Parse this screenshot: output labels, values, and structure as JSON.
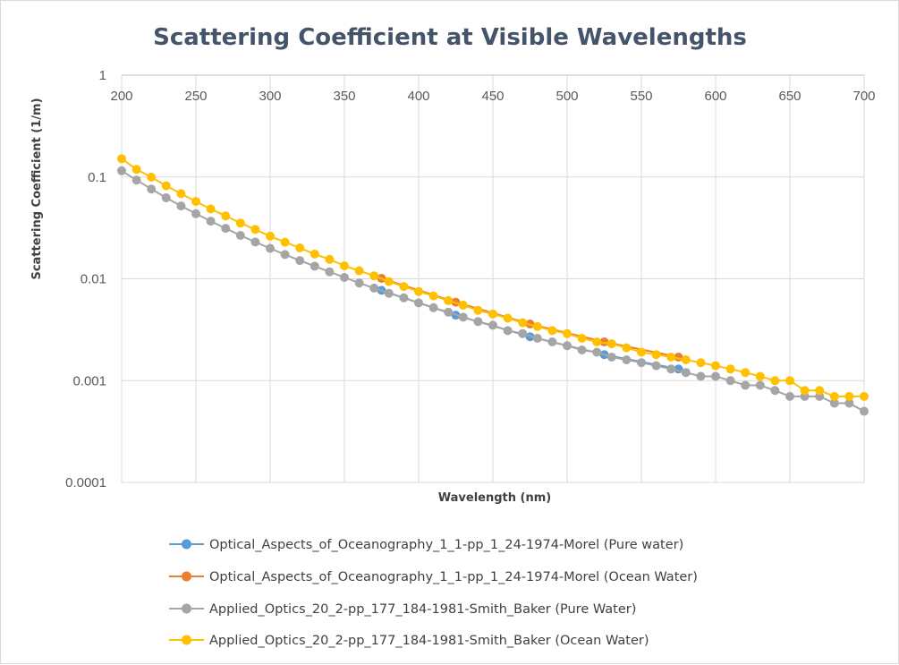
{
  "chart_data": {
    "type": "line",
    "title": "Scattering Coefficient at Visible Wavelengths",
    "xlabel": "Wavelength (nm)",
    "ylabel": "Scattering Coefficient (1/m)",
    "xlim": [
      200,
      700
    ],
    "ylim": [
      0.0001,
      1
    ],
    "y_scale": "log",
    "x_axis_position": "top",
    "grid": true,
    "legend_position": "bottom",
    "x_ticks": [
      "200",
      "250",
      "300",
      "350",
      "400",
      "450",
      "500",
      "550",
      "600",
      "650",
      "700"
    ],
    "y_ticks": [
      "1",
      "0.1",
      "0.01",
      "0.001",
      "0.0001"
    ],
    "series": [
      {
        "name": "Optical_Aspects_of_Oceanography_1_1-pp_1_24-1974-Morel (Pure water)",
        "color": "#5b9bd5",
        "x": [
          375,
          425,
          475,
          525,
          575
        ],
        "y": [
          0.0077,
          0.0044,
          0.0027,
          0.0018,
          0.0013
        ]
      },
      {
        "name": "Optical_Aspects_of_Oceanography_1_1-pp_1_24-1974-Morel (Ocean Water)",
        "color": "#ed7d31",
        "x": [
          375,
          425,
          475,
          525,
          575
        ],
        "y": [
          0.0101,
          0.0059,
          0.0036,
          0.0024,
          0.0017
        ]
      },
      {
        "name": "Applied_Optics_20_2-pp_177_184-1981-Smith_Baker (Pure Water)",
        "color": "#a5a5a5",
        "x": [
          200,
          210,
          220,
          230,
          240,
          250,
          260,
          270,
          280,
          290,
          300,
          310,
          320,
          330,
          340,
          350,
          360,
          370,
          380,
          390,
          400,
          410,
          420,
          430,
          440,
          450,
          460,
          470,
          480,
          490,
          500,
          510,
          520,
          530,
          540,
          550,
          560,
          570,
          580,
          590,
          600,
          610,
          620,
          630,
          640,
          650,
          660,
          670,
          680,
          690,
          700
        ],
        "y": [
          0.1151,
          0.0932,
          0.0762,
          0.0624,
          0.052,
          0.0436,
          0.0368,
          0.0313,
          0.0267,
          0.023,
          0.0199,
          0.0173,
          0.0151,
          0.0133,
          0.0117,
          0.0103,
          0.0091,
          0.0081,
          0.0072,
          0.0065,
          0.0058,
          0.0052,
          0.0047,
          0.0042,
          0.0038,
          0.0035,
          0.0031,
          0.0029,
          0.0026,
          0.0024,
          0.0022,
          0.002,
          0.0019,
          0.0017,
          0.0016,
          0.0015,
          0.0014,
          0.0013,
          0.0012,
          0.0011,
          0.0011,
          0.001,
          0.0009,
          0.0009,
          0.0008,
          0.0007,
          0.0007,
          0.0007,
          0.0006,
          0.0006,
          0.0005
        ]
      },
      {
        "name": "Applied_Optics_20_2-pp_177_184-1981-Smith_Baker (Ocean Water)",
        "color": "#ffc000",
        "x": [
          200,
          210,
          220,
          230,
          240,
          250,
          260,
          270,
          280,
          290,
          300,
          310,
          320,
          330,
          340,
          350,
          360,
          370,
          380,
          390,
          400,
          410,
          420,
          430,
          440,
          450,
          460,
          470,
          480,
          490,
          500,
          510,
          520,
          530,
          540,
          550,
          560,
          570,
          580,
          590,
          600,
          610,
          620,
          630,
          640,
          650,
          660,
          670,
          680,
          690,
          700
        ],
        "y": [
          0.151,
          0.119,
          0.0995,
          0.082,
          0.0685,
          0.0575,
          0.0485,
          0.0415,
          0.0353,
          0.0305,
          0.0262,
          0.0229,
          0.0201,
          0.0175,
          0.0155,
          0.0134,
          0.012,
          0.0107,
          0.0094,
          0.0084,
          0.0075,
          0.0068,
          0.0061,
          0.0055,
          0.0049,
          0.0045,
          0.0041,
          0.0037,
          0.0034,
          0.0031,
          0.0029,
          0.0026,
          0.0024,
          0.0023,
          0.0021,
          0.0019,
          0.0018,
          0.0017,
          0.0016,
          0.0015,
          0.0014,
          0.0013,
          0.0012,
          0.0011,
          0.001,
          0.001,
          0.0008,
          0.0008,
          0.0007,
          0.0007,
          0.0007
        ]
      }
    ]
  }
}
